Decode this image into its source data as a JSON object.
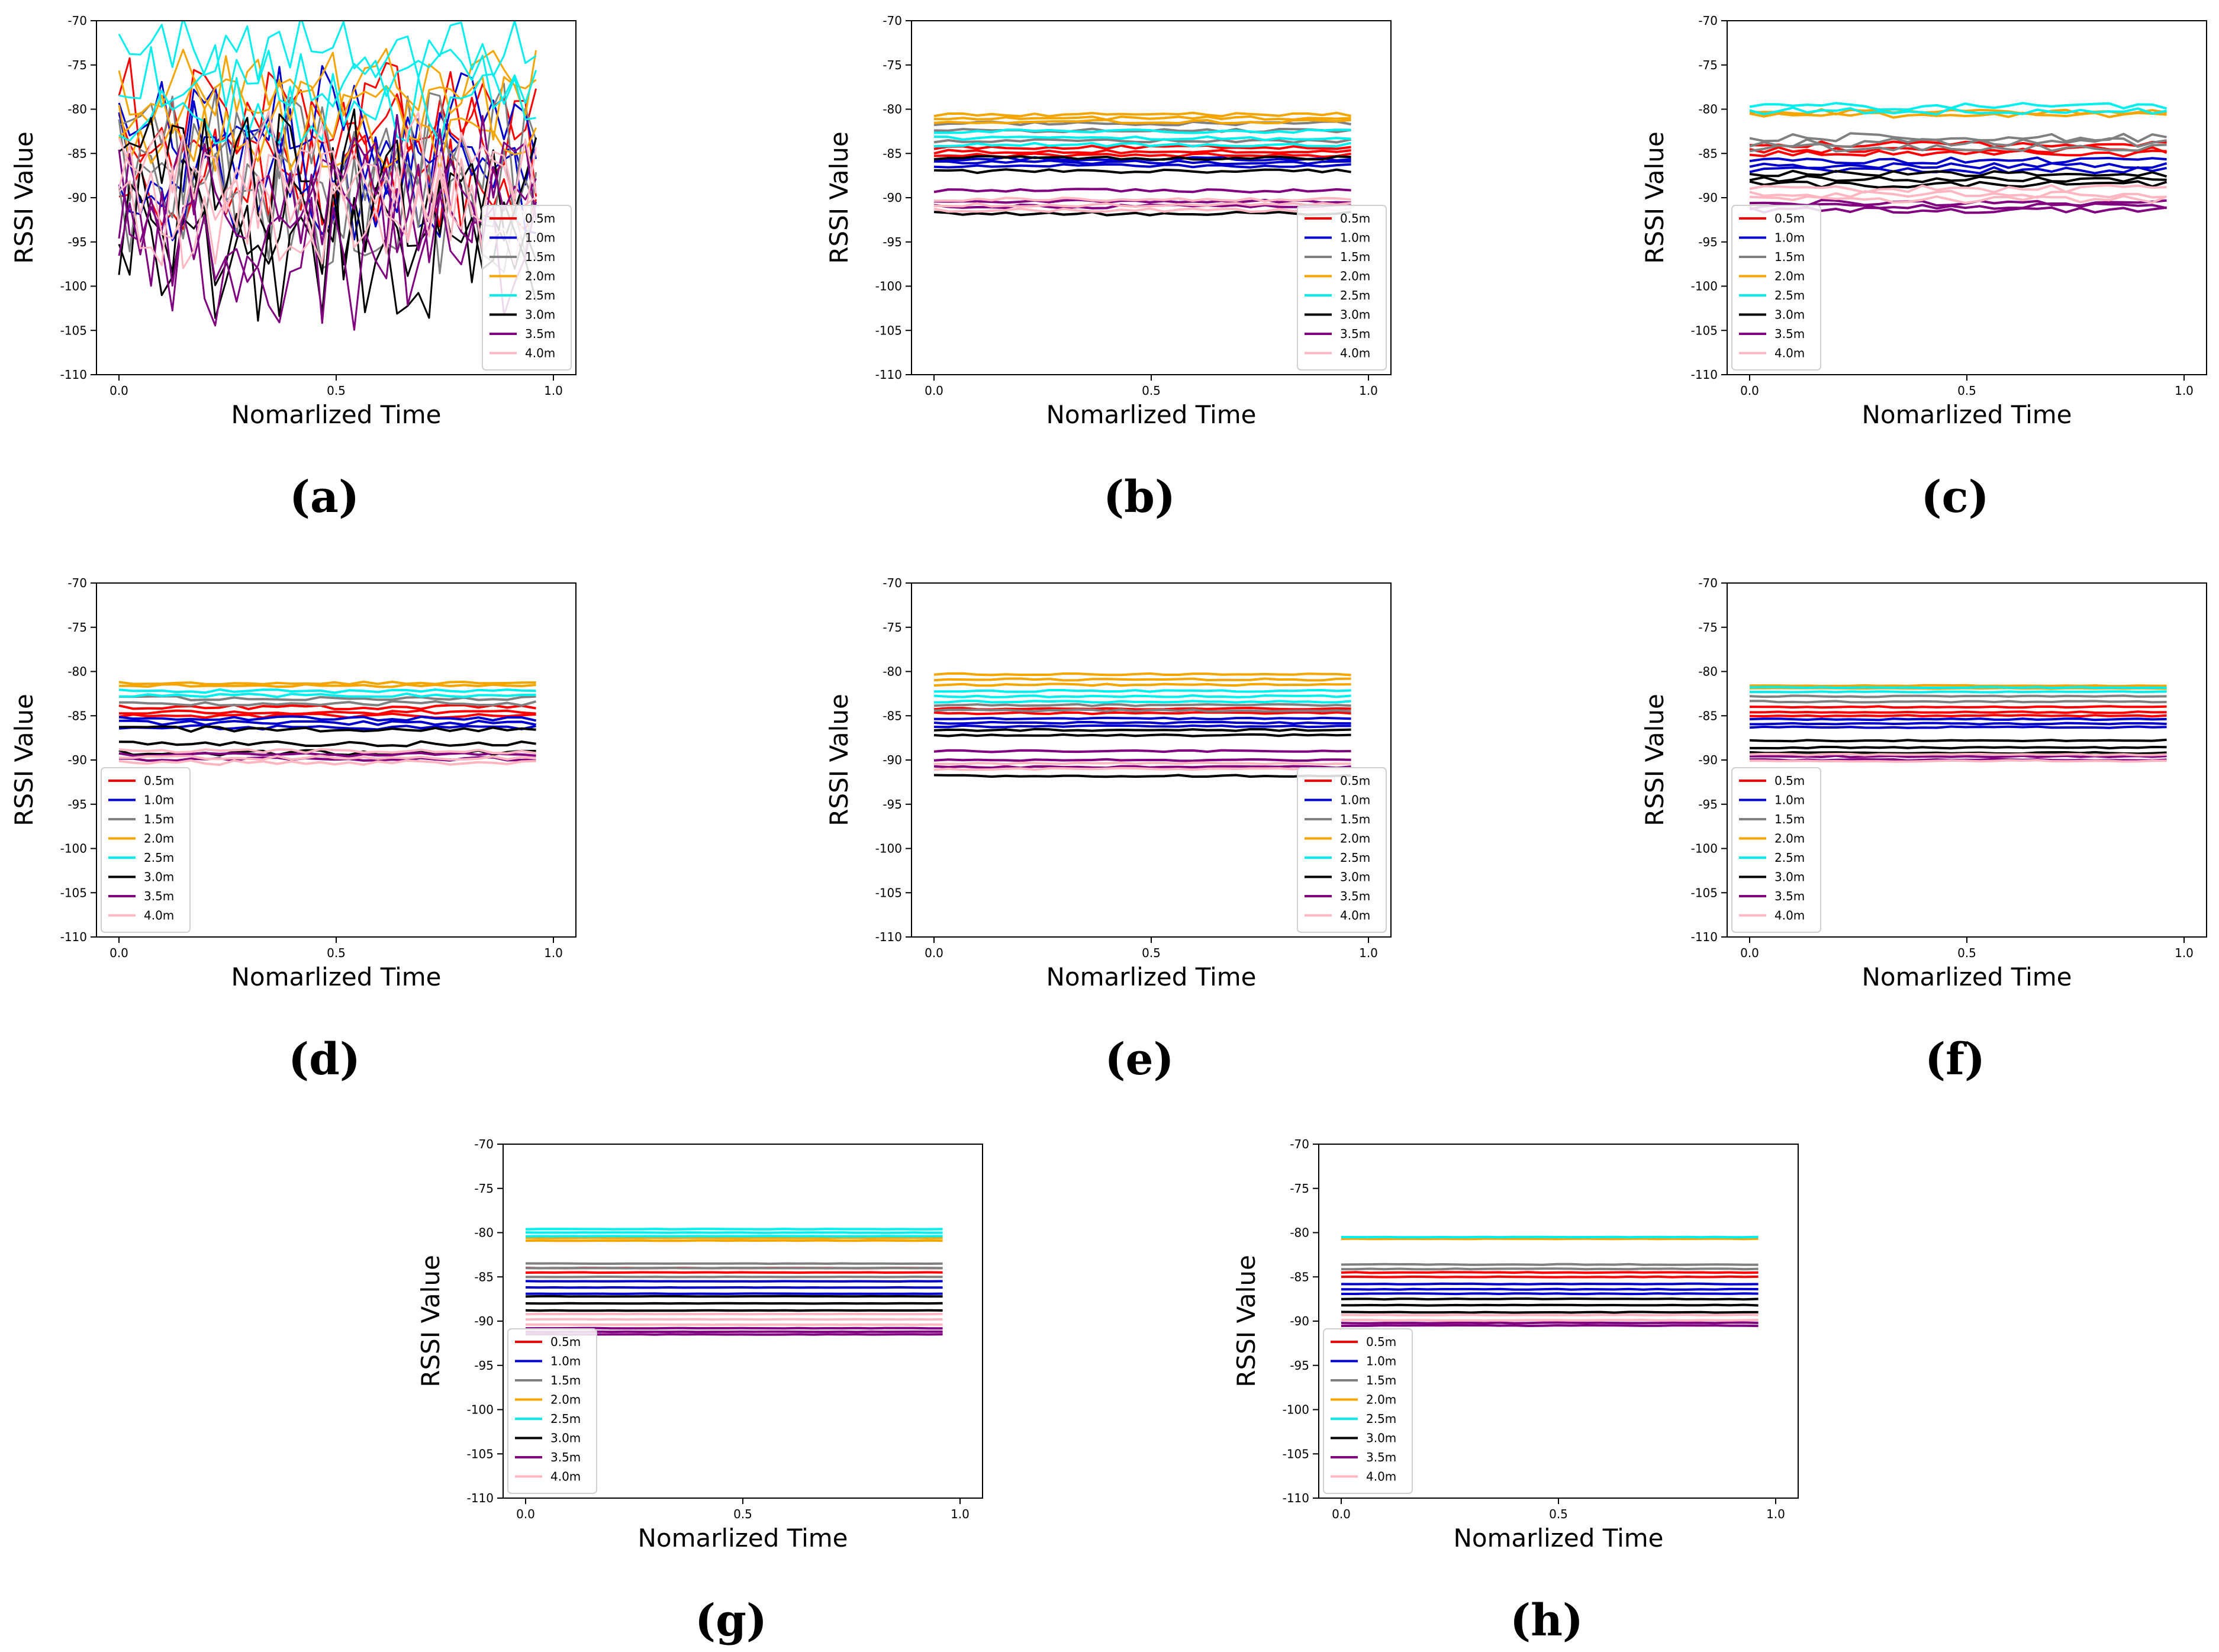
{
  "figure": {
    "panels": [
      "a",
      "b",
      "c",
      "d",
      "e",
      "f",
      "g",
      "h"
    ]
  },
  "colors": {
    "0.5m": "#ff0000",
    "1.0m": "#0000cc",
    "1.5m": "#808080",
    "2.0m": "#f5a500",
    "2.5m": "#00eeee",
    "3.0m": "#000000",
    "3.5m": "#800080",
    "4.0m": "#ffb6c1",
    "axis": "#000000"
  },
  "chart_data": [
    {
      "panel": "a",
      "caption": "(a)",
      "type": "line",
      "variant": "noisy",
      "legend": "bottom-right",
      "xlabel": "Nomarlized Time",
      "ylabel": "RSSI Value",
      "xlim": [
        0,
        1
      ],
      "ylim": [
        -110,
        -70
      ],
      "xticks": [
        "0.0",
        "0.5",
        "1.0"
      ],
      "yticks": [
        "-70",
        "-75",
        "-80",
        "-85",
        "-90",
        "-95",
        "-100",
        "-105",
        "-110"
      ],
      "series": [
        {
          "name": "0.5m",
          "center": [
            -80,
            -84,
            -88
          ],
          "spread": 6
        },
        {
          "name": "1.0m",
          "center": [
            -81,
            -85,
            -89
          ],
          "spread": 6
        },
        {
          "name": "1.5m",
          "center": [
            -84,
            -88,
            -92
          ],
          "spread": 7
        },
        {
          "name": "2.0m",
          "center": [
            -77,
            -80,
            -83
          ],
          "spread": 4
        },
        {
          "name": "2.5m",
          "center": [
            -73,
            -76,
            -80
          ],
          "spread": 4
        },
        {
          "name": "3.0m",
          "center": [
            -88,
            -92,
            -96
          ],
          "spread": 8
        },
        {
          "name": "3.5m",
          "center": [
            -88,
            -93,
            -97
          ],
          "spread": 8
        },
        {
          "name": "4.0m",
          "center": [
            -86,
            -89,
            -92
          ],
          "spread": 6
        }
      ]
    },
    {
      "panel": "b",
      "caption": "(b)",
      "type": "line",
      "variant": "flat",
      "legend": "bottom-right",
      "xlabel": "Nomarlized Time",
      "ylabel": "RSSI Value",
      "xlim": [
        0,
        1
      ],
      "ylim": [
        -110,
        -70
      ],
      "xticks": [
        "0.0",
        "0.5",
        "1.0"
      ],
      "yticks": [
        "-70",
        "-75",
        "-80",
        "-85",
        "-90",
        "-95",
        "-100",
        "-105",
        "-110"
      ],
      "series": [
        {
          "name": "0.5m",
          "levels": [
            -84.3,
            -84.8,
            -85.2
          ],
          "jitter": 0.2
        },
        {
          "name": "1.0m",
          "levels": [
            -85.6,
            -86.0,
            -86.4
          ],
          "jitter": 0.2
        },
        {
          "name": "1.5m",
          "levels": [
            -81.6,
            -82.4,
            -83.6
          ],
          "jitter": 0.2
        },
        {
          "name": "2.0m",
          "levels": [
            -80.6,
            -81.0,
            -81.4
          ],
          "jitter": 0.2
        },
        {
          "name": "2.5m",
          "levels": [
            -82.5,
            -83.3,
            -84.0
          ],
          "jitter": 0.2
        },
        {
          "name": "3.0m",
          "levels": [
            -85.5,
            -87.0,
            -91.8
          ],
          "jitter": 0.2
        },
        {
          "name": "3.5m",
          "levels": [
            -89.2,
            -90.4,
            -91.0
          ],
          "jitter": 0.2
        },
        {
          "name": "4.0m",
          "levels": [
            -90.2,
            -90.8,
            -91.4
          ],
          "jitter": 0.2
        }
      ]
    },
    {
      "panel": "c",
      "caption": "(c)",
      "type": "line",
      "variant": "flat",
      "legend": "bottom-left",
      "xlabel": "Nomarlized Time",
      "ylabel": "RSSI Value",
      "xlim": [
        0,
        1
      ],
      "ylim": [
        -110,
        -70
      ],
      "xticks": [
        "0.0",
        "0.5",
        "1.0"
      ],
      "yticks": [
        "-70",
        "-75",
        "-80",
        "-85",
        "-90",
        "-95",
        "-100",
        "-105",
        "-110"
      ],
      "series": [
        {
          "name": "0.5m",
          "levels": [
            -84.0,
            -84.6,
            -85.0
          ],
          "jitter": 0.35
        },
        {
          "name": "1.0m",
          "levels": [
            -85.8,
            -86.4,
            -86.9
          ],
          "jitter": 0.35
        },
        {
          "name": "1.5m",
          "levels": [
            -83.2,
            -83.8,
            -84.4
          ],
          "jitter": 0.5
        },
        {
          "name": "2.0m",
          "levels": [
            -80.3,
            -80.7
          ],
          "jitter": 0.3
        },
        {
          "name": "2.5m",
          "levels": [
            -79.7,
            -80.2
          ],
          "jitter": 0.4
        },
        {
          "name": "3.0m",
          "levels": [
            -87.3,
            -87.9,
            -88.5
          ],
          "jitter": 0.35
        },
        {
          "name": "3.5m",
          "levels": [
            -90.6,
            -91.0,
            -91.4
          ],
          "jitter": 0.35
        },
        {
          "name": "4.0m",
          "levels": [
            -89.0,
            -89.6,
            -90.2
          ],
          "jitter": 0.4
        }
      ]
    },
    {
      "panel": "d",
      "caption": "(d)",
      "type": "line",
      "variant": "flat",
      "legend": "bottom-left",
      "xlabel": "Nomarlized Time",
      "ylabel": "RSSI Value",
      "xlim": [
        0,
        1
      ],
      "ylim": [
        -110,
        -70
      ],
      "xticks": [
        "0.0",
        "0.5",
        "1.0"
      ],
      "yticks": [
        "-70",
        "-75",
        "-80",
        "-85",
        "-90",
        "-95",
        "-100",
        "-105",
        "-110"
      ],
      "series": [
        {
          "name": "0.5m",
          "levels": [
            -84.0,
            -84.6,
            -85.0
          ],
          "jitter": 0.25
        },
        {
          "name": "1.0m",
          "levels": [
            -85.3,
            -85.8,
            -86.3
          ],
          "jitter": 0.25
        },
        {
          "name": "1.5m",
          "levels": [
            -83.0,
            -83.6
          ],
          "jitter": 0.25
        },
        {
          "name": "2.0m",
          "levels": [
            -81.3,
            -81.6
          ],
          "jitter": 0.15
        },
        {
          "name": "2.5m",
          "levels": [
            -82.2,
            -82.7
          ],
          "jitter": 0.2
        },
        {
          "name": "3.0m",
          "levels": [
            -86.5,
            -88.2,
            -89.2
          ],
          "jitter": 0.3
        },
        {
          "name": "3.5m",
          "levels": [
            -89.4,
            -89.9
          ],
          "jitter": 0.2
        },
        {
          "name": "4.0m",
          "levels": [
            -89.0,
            -89.7,
            -90.3
          ],
          "jitter": 0.25
        }
      ]
    },
    {
      "panel": "e",
      "caption": "(e)",
      "type": "line",
      "variant": "flat",
      "legend": "bottom-right",
      "xlabel": "Nomarlized Time",
      "ylabel": "RSSI Value",
      "xlim": [
        0,
        1
      ],
      "ylim": [
        -110,
        -70
      ],
      "xticks": [
        "0.0",
        "0.5",
        "1.0"
      ],
      "yticks": [
        "-70",
        "-75",
        "-80",
        "-85",
        "-90",
        "-95",
        "-100",
        "-105",
        "-110"
      ],
      "series": [
        {
          "name": "0.5m",
          "levels": [
            -84.2,
            -84.7
          ],
          "jitter": 0.1
        },
        {
          "name": "1.0m",
          "levels": [
            -85.3,
            -85.8,
            -86.2
          ],
          "jitter": 0.1
        },
        {
          "name": "1.5m",
          "levels": [
            -83.8,
            -84.4
          ],
          "jitter": 0.1
        },
        {
          "name": "2.0m",
          "levels": [
            -80.3,
            -80.9,
            -81.5
          ],
          "jitter": 0.1
        },
        {
          "name": "2.5m",
          "levels": [
            -82.2,
            -82.8,
            -83.4
          ],
          "jitter": 0.1
        },
        {
          "name": "3.0m",
          "levels": [
            -86.6,
            -87.2,
            -91.8
          ],
          "jitter": 0.1
        },
        {
          "name": "3.5m",
          "levels": [
            -89.0,
            -90.0,
            -90.8
          ],
          "jitter": 0.1
        },
        {
          "name": "4.0m",
          "levels": [
            -90.4,
            -91.0
          ],
          "jitter": 0.1
        }
      ]
    },
    {
      "panel": "f",
      "caption": "(f)",
      "type": "line",
      "variant": "flat",
      "legend": "bottom-left",
      "xlabel": "Nomarlized Time",
      "ylabel": "RSSI Value",
      "xlim": [
        0,
        1
      ],
      "ylim": [
        -110,
        -70
      ],
      "xticks": [
        "0.0",
        "0.5",
        "1.0"
      ],
      "yticks": [
        "-70",
        "-75",
        "-80",
        "-85",
        "-90",
        "-95",
        "-100",
        "-105",
        "-110"
      ],
      "series": [
        {
          "name": "0.5m",
          "levels": [
            -84.0,
            -84.6,
            -85.0
          ],
          "jitter": 0.08
        },
        {
          "name": "1.0m",
          "levels": [
            -85.4,
            -85.9,
            -86.3
          ],
          "jitter": 0.08
        },
        {
          "name": "1.5m",
          "levels": [
            -82.8,
            -83.4
          ],
          "jitter": 0.08
        },
        {
          "name": "2.0m",
          "levels": [
            -81.6,
            -81.9
          ],
          "jitter": 0.05
        },
        {
          "name": "2.5m",
          "levels": [
            -81.8,
            -82.3
          ],
          "jitter": 0.05
        },
        {
          "name": "3.0m",
          "levels": [
            -87.8,
            -88.6,
            -89.2
          ],
          "jitter": 0.08
        },
        {
          "name": "3.5m",
          "levels": [
            -89.6,
            -90.0
          ],
          "jitter": 0.08
        },
        {
          "name": "4.0m",
          "levels": [
            -89.4,
            -90.1
          ],
          "jitter": 0.08
        }
      ]
    },
    {
      "panel": "g",
      "caption": "(g)",
      "type": "line",
      "variant": "flat",
      "legend": "bottom-left",
      "xlabel": "Nomarlized Time",
      "ylabel": "RSSI Value",
      "xlim": [
        0,
        1
      ],
      "ylim": [
        -110,
        -70
      ],
      "xticks": [
        "0.0",
        "0.5",
        "1.0"
      ],
      "yticks": [
        "-70",
        "-75",
        "-80",
        "-85",
        "-90",
        "-95",
        "-100",
        "-105",
        "-110"
      ],
      "series": [
        {
          "name": "0.5m",
          "levels": [
            -84.0,
            -84.5
          ],
          "jitter": 0.02
        },
        {
          "name": "1.0m",
          "levels": [
            -85.5,
            -86.2,
            -86.9
          ],
          "jitter": 0.02
        },
        {
          "name": "1.5m",
          "levels": [
            -83.5,
            -84.0,
            -85.0
          ],
          "jitter": 0.02
        },
        {
          "name": "2.0m",
          "levels": [
            -80.6,
            -80.9
          ],
          "jitter": 0.02
        },
        {
          "name": "2.5m",
          "levels": [
            -79.6,
            -80.0,
            -80.4
          ],
          "jitter": 0.02
        },
        {
          "name": "3.0m",
          "levels": [
            -87.2,
            -88.0,
            -88.8
          ],
          "jitter": 0.02
        },
        {
          "name": "3.5m",
          "levels": [
            -90.8,
            -91.2,
            -91.5
          ],
          "jitter": 0.02
        },
        {
          "name": "4.0m",
          "levels": [
            -89.2,
            -89.8,
            -90.4
          ],
          "jitter": 0.02
        }
      ]
    },
    {
      "panel": "h",
      "caption": "(h)",
      "type": "line",
      "variant": "flat",
      "legend": "bottom-left",
      "xlabel": "Nomarlized Time",
      "ylabel": "RSSI Value",
      "xlim": [
        0,
        1
      ],
      "ylim": [
        -110,
        -70
      ],
      "xticks": [
        "0.0",
        "0.5",
        "1.0"
      ],
      "yticks": [
        "-70",
        "-75",
        "-80",
        "-85",
        "-90",
        "-95",
        "-100",
        "-105",
        "-110"
      ],
      "series": [
        {
          "name": "0.5m",
          "levels": [
            -84.5,
            -85.0
          ],
          "jitter": 0.04
        },
        {
          "name": "1.0m",
          "levels": [
            -85.8,
            -86.4,
            -86.9
          ],
          "jitter": 0.04
        },
        {
          "name": "1.5m",
          "levels": [
            -83.6,
            -84.1
          ],
          "jitter": 0.04
        },
        {
          "name": "2.0m",
          "levels": [
            -80.7
          ],
          "jitter": 0.02
        },
        {
          "name": "2.5m",
          "levels": [
            -80.5
          ],
          "jitter": 0.02
        },
        {
          "name": "3.0m",
          "levels": [
            -87.5,
            -88.2,
            -89.0
          ],
          "jitter": 0.04
        },
        {
          "name": "3.5m",
          "levels": [
            -90.2,
            -90.5
          ],
          "jitter": 0.04
        },
        {
          "name": "4.0m",
          "levels": [
            -89.3,
            -89.9
          ],
          "jitter": 0.04
        }
      ]
    }
  ]
}
